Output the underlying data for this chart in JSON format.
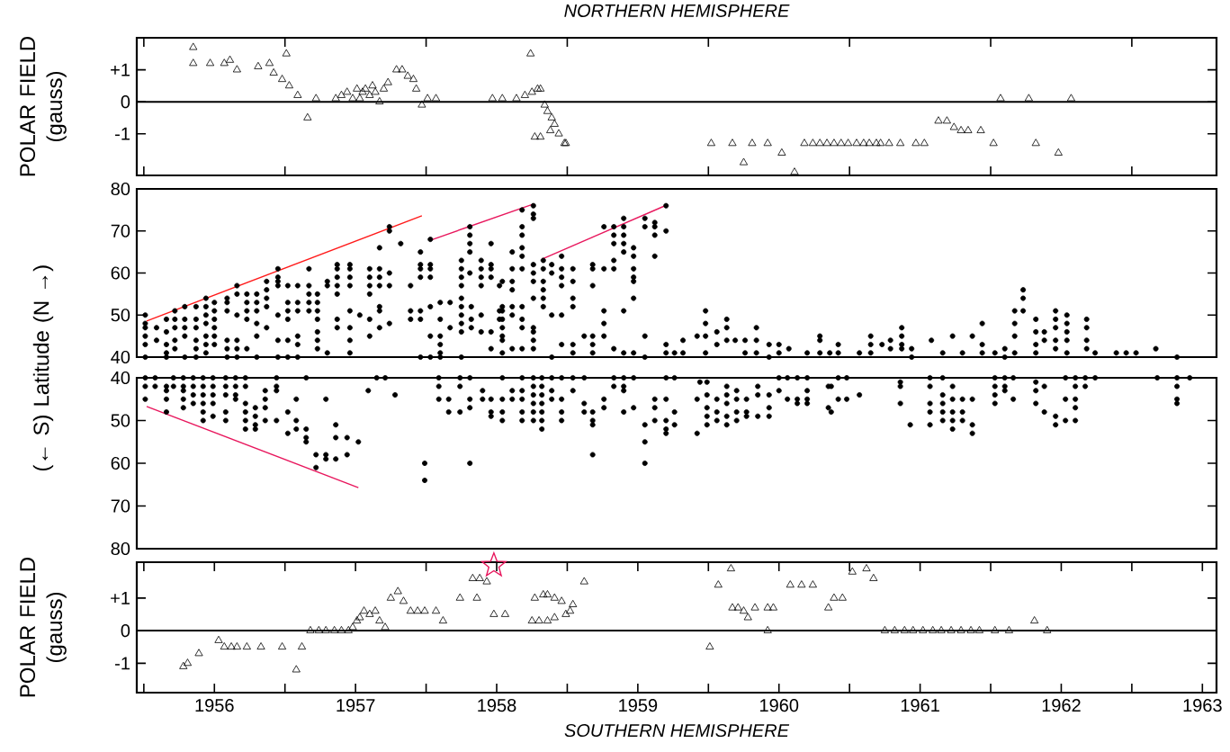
{
  "chart_data": [
    {
      "type": "scatter",
      "title": "NORTHERN HEMISPHERE",
      "ylabel": "POLAR FIELD (gauss)",
      "xlim": [
        1955.95,
        1963.6
      ],
      "ylim": [
        -2.3,
        2.0
      ],
      "tick_labels": "y",
      "xticks": [
        {
          "value": 1956,
          "label": null
        },
        {
          "value": 1957,
          "label": null
        },
        {
          "value": 1958,
          "label": null
        },
        {
          "value": 1959,
          "label": null
        },
        {
          "value": 1960,
          "label": null
        },
        {
          "value": 1961,
          "label": null
        },
        {
          "value": 1962,
          "label": null
        },
        {
          "value": 1963,
          "label": null
        }
      ],
      "yticks": [
        {
          "value": 1,
          "label": "+1"
        },
        0,
        -1
      ],
      "ref_lines": [
        {
          "axis": "y",
          "value": 0
        }
      ],
      "series": [
        {
          "color": "#000000",
          "marker": "triangle",
          "x": [
            1956.35,
            1956.35,
            1956.47,
            1956.57,
            1956.61,
            1956.66,
            1956.81,
            1956.89,
            1956.92,
            1956.98,
            1957.01,
            1957.03,
            1957.09,
            1957.16,
            1957.22,
            1957.36,
            1957.4,
            1957.44,
            1957.48,
            1957.51,
            1957.53,
            1957.55,
            1957.57,
            1957.6,
            1957.62,
            1957.64,
            1957.67,
            1957.7,
            1957.73,
            1957.79,
            1957.83,
            1957.87,
            1957.91,
            1957.93,
            1957.97,
            1958.01,
            1958.07,
            1958.47,
            1958.54,
            1958.64,
            1958.7,
            1958.74,
            1958.75,
            1958.79,
            1958.81,
            1958.84,
            1958.86,
            1958.89,
            1958.91,
            1958.77,
            1958.81,
            1958.88,
            1958.94,
            1958.98,
            1958.99,
            1960.02,
            1960.17,
            1960.25,
            1960.31,
            1960.42,
            1960.52,
            1960.61,
            1960.68,
            1960.74,
            1960.79,
            1960.84,
            1960.89,
            1960.94,
            1960.99,
            1961.05,
            1961.1,
            1961.14,
            1961.19,
            1961.22,
            1961.28,
            1961.36,
            1961.47,
            1961.53,
            1961.63,
            1961.69,
            1961.74,
            1961.79,
            1961.84,
            1961.93,
            1962.02,
            1962.07,
            1962.27,
            1962.32,
            1962.48,
            1962.57
          ],
          "values": [
            1.7,
            1.2,
            1.2,
            1.2,
            1.3,
            1.0,
            1.1,
            1.2,
            0.9,
            0.7,
            1.5,
            0.5,
            0.2,
            -0.5,
            0.1,
            0.1,
            0.2,
            0.3,
            0.1,
            0.4,
            0.1,
            0.3,
            0.4,
            0.2,
            0.5,
            0.3,
            0,
            0.4,
            0.6,
            1.0,
            1.0,
            0.8,
            0.7,
            0.4,
            -0.1,
            0.1,
            0.1,
            0.1,
            0.1,
            0.1,
            0.2,
            1.5,
            0.3,
            0.4,
            0.4,
            -0.1,
            -0.3,
            -0.5,
            -0.7,
            -1.1,
            -1.1,
            -0.9,
            -1.0,
            -1.3,
            -1.3,
            -1.3,
            -1.3,
            -1.9,
            -1.3,
            -1.3,
            -1.6,
            -2.2,
            -1.3,
            -1.3,
            -1.3,
            -1.3,
            -1.3,
            -1.3,
            -1.3,
            -1.3,
            -1.3,
            -1.3,
            -1.3,
            -1.3,
            -1.3,
            -1.3,
            -1.3,
            -1.3,
            -0.6,
            -0.6,
            -0.8,
            -0.9,
            -0.9,
            -0.9,
            -1.3,
            0.1,
            0.1,
            -1.3,
            -1.6,
            0.1
          ]
        }
      ]
    },
    {
      "type": "scatter",
      "ylabel": "(← S) Latitude (N →)",
      "xlim": [
        1955.95,
        1963.6
      ],
      "ylim": [
        40,
        80
      ],
      "tick_labels": "y",
      "yticks": [
        40,
        50,
        60,
        70,
        80
      ],
      "series": [
        {
          "color": "#000000",
          "marker": "circle",
          "x": [
            1956.01,
            1956.01,
            1956.01,
            1956.01,
            1956.01,
            1956.01,
            1956.09,
            1956.09,
            1956.16,
            1956.16,
            1956.16,
            1956.16,
            1956.16,
            1956.22,
            1956.22,
            1956.22,
            1956.22,
            1956.22,
            1956.29,
            1956.29,
            1956.29,
            1956.29,
            1956.29,
            1956.37,
            1956.37,
            1956.37,
            1956.37,
            1956.37,
            1956.37,
            1956.44,
            1956.44,
            1956.44,
            1956.44,
            1956.44,
            1956.44,
            1956.44,
            1956.5,
            1956.5,
            1956.5,
            1956.5,
            1956.5,
            1956.5,
            1956.59,
            1956.59,
            1956.59,
            1956.59,
            1956.59,
            1956.59,
            1956.66,
            1956.66,
            1956.66,
            1956.66,
            1956.66,
            1956.66,
            1956.73,
            1956.73,
            1956.73,
            1956.73,
            1956.73,
            1956.8,
            1956.8,
            1956.8,
            1956.8,
            1956.8,
            1956.8,
            1956.87,
            1956.87,
            1956.87,
            1956.87,
            1956.87,
            1956.95,
            1956.95,
            1956.95,
            1956.95,
            1956.95,
            1956.95,
            1956.95,
            1957.02,
            1957.02,
            1957.02,
            1957.02,
            1957.02,
            1957.02,
            1957.09,
            1957.09,
            1957.09,
            1957.09,
            1957.09,
            1957.09,
            1957.17,
            1957.17,
            1957.17,
            1957.17,
            1957.17,
            1957.23,
            1957.23,
            1957.23,
            1957.23,
            1957.23,
            1957.23,
            1957.23,
            1957.3,
            1957.3,
            1957.3,
            1957.37,
            1957.37,
            1957.37,
            1957.37,
            1957.37,
            1957.37,
            1957.37,
            1957.46,
            1957.46,
            1957.46,
            1957.46,
            1957.46,
            1957.46,
            1957.46,
            1957.46,
            1957.53,
            1957.6,
            1957.6,
            1957.6,
            1957.6,
            1957.6,
            1957.6,
            1957.67,
            1957.67,
            1957.67,
            1957.67,
            1957.67,
            1957.67,
            1957.67,
            1957.74,
            1957.74,
            1957.74,
            1957.74,
            1957.74,
            1957.82,
            1957.89,
            1957.89,
            1957.89,
            1957.96,
            1957.96,
            1957.96,
            1957.96,
            1957.96,
            1957.96,
            1957.96,
            1958.03,
            1958.03,
            1958.03,
            1958.03,
            1958.03,
            1958.03,
            1958.03,
            1958.1,
            1958.1,
            1958.1,
            1958.1,
            1958.1,
            1958.1,
            1958.17,
            1958.17,
            1958.25,
            1958.25,
            1958.25,
            1958.25,
            1958.25,
            1958.25,
            1958.25,
            1958.25,
            1958.25,
            1958.25,
            1958.31,
            1958.31,
            1958.31,
            1958.31,
            1958.31,
            1958.32,
            1958.32,
            1958.32,
            1958.39,
            1958.39,
            1958.39,
            1958.39,
            1958.39,
            1958.39,
            1958.46,
            1958.46,
            1958.46,
            1958.46,
            1958.46,
            1958.46,
            1958.52,
            1958.52,
            1958.52,
            1958.54,
            1958.54,
            1958.54,
            1958.54,
            1958.54,
            1958.54,
            1958.54,
            1958.54,
            1958.61,
            1958.61,
            1958.61,
            1958.61,
            1958.61,
            1958.61,
            1958.61,
            1958.68,
            1958.68,
            1958.68,
            1958.68,
            1958.68,
            1958.68,
            1958.68,
            1958.68,
            1958.68,
            1958.68,
            1958.76,
            1958.76,
            1958.76,
            1958.76,
            1958.76,
            1958.76,
            1958.76,
            1958.76,
            1958.76,
            1958.76,
            1958.76,
            1958.83,
            1958.83,
            1958.83,
            1958.83,
            1958.83,
            1958.83,
            1958.89,
            1958.89,
            1958.89,
            1958.89,
            1958.96,
            1958.96,
            1958.96,
            1958.96,
            1958.96,
            1958.96,
            1959.04,
            1959.04,
            1959.04,
            1959.04,
            1959.04,
            1959.04,
            1959.12,
            1959.18,
            1959.18,
            1959.18,
            1959.18,
            1959.18,
            1959.18,
            1959.26,
            1959.26,
            1959.26,
            1959.26,
            1959.26,
            1959.33,
            1959.33,
            1959.33,
            1959.33,
            1959.33,
            1959.33,
            1959.4,
            1959.4,
            1959.4,
            1959.4,
            1959.4,
            1959.4,
            1959.4,
            1959.47,
            1959.47,
            1959.47,
            1959.47,
            1959.47,
            1959.47,
            1959.47,
            1959.55,
            1959.55,
            1959.55,
            1959.55,
            1959.62,
            1959.62,
            1959.62,
            1959.62,
            1959.7,
            1959.7,
            1959.7,
            1959.7,
            1959.76,
            1959.82,
            1959.82,
            1959.92,
            1959.98,
            1959.98,
            1959.98,
            1959.98,
            1960.06,
            1960.06,
            1960.13,
            1960.13,
            1960.13,
            1960.19,
            1960.26,
            1960.26,
            1960.34,
            1960.34,
            1960.34,
            1960.43,
            1960.43,
            1960.5,
            1960.5,
            1960.57,
            1960.7,
            1960.79,
            1960.79,
            1960.79,
            1960.86,
            1960.92,
            1960.92,
            1961.07,
            1961.15,
            1961.15,
            1961.15,
            1961.23,
            1961.29,
            1961.29,
            1961.37,
            1961.37,
            1961.37,
            1961.37,
            1961.44,
            1961.44,
            1961.58,
            1961.66,
            1961.73,
            1961.8,
            1961.87,
            1961.94,
            1961.94,
            1961.94,
            1962.03,
            1962.1,
            1962.1,
            1962.17,
            1962.17,
            1962.17,
            1962.17,
            1962.23,
            1962.23,
            1962.23,
            1962.32,
            1962.32,
            1962.32,
            1962.32,
            1962.38,
            1962.38,
            1962.46,
            1962.46,
            1962.46,
            1962.46,
            1962.46,
            1962.54,
            1962.54,
            1962.54,
            1962.54,
            1962.54,
            1962.68,
            1962.68,
            1962.68,
            1962.68,
            1962.74,
            1962.89,
            1962.96,
            1963.03,
            1963.17,
            1963.32
          ],
          "values": [
            50,
            48,
            47,
            45,
            43,
            40,
            47,
            44,
            49,
            46,
            43,
            41,
            40,
            51,
            49,
            47,
            44,
            42,
            52,
            49,
            47,
            45,
            40,
            52,
            49,
            47,
            44,
            42,
            40,
            54,
            52,
            50,
            48,
            45,
            43,
            41,
            53,
            51,
            49,
            47,
            45,
            43,
            54,
            53,
            51,
            44,
            42,
            40,
            57,
            55,
            50,
            44,
            42,
            40,
            55,
            53,
            51,
            49,
            42,
            55,
            53,
            51,
            48,
            45,
            40,
            58,
            56,
            54,
            52,
            47,
            61,
            59,
            58,
            57,
            50,
            44,
            40,
            57,
            53,
            51,
            49,
            44,
            40,
            57,
            53,
            51,
            45,
            43,
            40,
            61,
            57,
            55,
            53,
            51,
            55,
            53,
            51,
            49,
            46,
            44,
            42,
            58,
            57,
            41,
            62,
            61,
            59,
            57,
            55,
            49,
            47,
            62,
            61,
            59,
            57,
            51,
            47,
            44,
            41,
            50,
            61,
            59,
            57,
            55,
            49,
            45,
            66,
            61,
            59,
            57,
            52,
            51,
            47,
            71,
            70,
            60,
            57,
            48,
            67,
            57,
            51,
            49,
            65,
            62,
            61,
            59,
            51,
            49,
            40,
            68,
            62,
            61,
            59,
            52,
            45,
            40,
            53,
            49,
            45,
            43,
            41,
            40,
            53,
            47,
            63,
            61,
            59,
            57,
            54,
            52,
            50,
            48,
            46,
            40,
            71,
            69,
            67,
            65,
            60,
            52,
            49,
            47,
            63,
            61,
            59,
            57,
            50,
            46,
            67,
            62,
            61,
            59,
            46,
            42,
            57,
            51,
            49,
            58,
            52,
            51,
            49,
            47,
            45,
            44,
            41,
            65,
            61,
            58,
            56,
            52,
            50,
            42,
            75,
            71,
            69,
            66,
            64,
            61,
            52,
            49,
            47,
            42,
            76,
            74,
            73,
            62,
            60,
            58,
            54,
            47,
            46,
            44,
            42,
            63,
            61,
            58,
            56,
            54,
            52,
            62,
            60,
            50,
            40,
            64,
            61,
            59,
            57,
            50,
            43,
            61,
            58,
            54,
            52,
            43,
            41,
            45,
            62,
            61,
            57,
            45,
            43,
            41,
            71,
            61,
            51,
            48,
            45,
            71,
            69,
            67,
            63,
            61,
            42,
            73,
            71,
            69,
            67,
            65,
            51,
            41,
            66,
            64,
            61,
            59,
            58,
            54,
            41,
            73,
            71,
            45,
            40,
            72,
            71,
            69,
            64,
            76,
            70,
            43,
            41,
            41,
            44,
            41,
            45,
            51,
            48,
            45,
            41,
            46,
            43,
            49,
            47,
            44,
            44,
            44,
            41,
            47,
            44,
            41,
            43,
            40,
            43,
            41,
            42,
            41,
            45,
            44,
            41,
            41,
            43,
            41,
            41,
            45,
            43,
            41,
            43,
            44,
            42,
            47,
            45,
            43,
            42,
            42,
            40,
            44,
            41,
            45,
            41,
            45,
            48,
            43,
            41,
            41,
            42,
            40,
            51,
            48,
            45,
            41,
            56,
            54,
            51,
            49,
            46,
            43,
            41,
            46,
            44,
            51,
            49,
            47,
            44,
            42,
            50,
            48,
            46,
            44,
            41,
            49,
            47,
            44,
            42,
            41,
            41,
            41,
            41,
            42,
            40
          ]
        },
        {
          "type": "line",
          "color": "#ff1a1a",
          "x": [
            1956.02,
            1957.97
          ],
          "values": [
            48.6,
            73.6
          ]
        },
        {
          "type": "line",
          "color": "#e8175d",
          "x": [
            1958.03,
            1958.76
          ],
          "values": [
            67.8,
            76.4
          ]
        },
        {
          "type": "line",
          "color": "#e8175d",
          "x": [
            1958.82,
            1959.7
          ],
          "values": [
            63.3,
            76.1
          ]
        }
      ]
    },
    {
      "type": "scatter",
      "xlim": [
        1955.95,
        1963.6
      ],
      "ylim": [
        80,
        40
      ],
      "tick_labels": "y",
      "yticks": [
        40,
        50,
        60,
        70,
        80
      ],
      "series": [
        {
          "color": "#000000",
          "marker": "circle",
          "x": [
            1956.01,
            1956.01,
            1956.01,
            1956.08,
            1956.08,
            1956.16,
            1956.16,
            1956.16,
            1956.16,
            1956.21,
            1956.21,
            1956.28,
            1956.28,
            1956.28,
            1956.28,
            1956.28,
            1956.35,
            1956.35,
            1956.35,
            1956.35,
            1956.42,
            1956.42,
            1956.42,
            1956.42,
            1956.42,
            1956.42,
            1956.49,
            1956.49,
            1956.49,
            1956.49,
            1956.49,
            1956.58,
            1956.58,
            1956.58,
            1956.58,
            1956.58,
            1956.65,
            1956.65,
            1956.65,
            1956.65,
            1956.72,
            1956.72,
            1956.72,
            1956.72,
            1956.72,
            1956.72,
            1956.79,
            1956.79,
            1956.79,
            1956.79,
            1956.86,
            1956.86,
            1956.86,
            1956.86,
            1956.94,
            1956.94,
            1956.94,
            1956.94,
            1957.02,
            1957.02,
            1957.08,
            1957.08,
            1957.08,
            1957.15,
            1957.15,
            1957.15,
            1957.15,
            1957.22,
            1957.22,
            1957.29,
            1957.29,
            1957.29,
            1957.36,
            1957.36,
            1957.36,
            1957.44,
            1957.44,
            1957.52,
            1957.59,
            1957.65,
            1957.71,
            1957.78,
            1957.99,
            1957.99,
            1958.09,
            1958.09,
            1958.09,
            1958.16,
            1958.16,
            1958.24,
            1958.24,
            1958.24,
            1958.31,
            1958.31,
            1958.31,
            1958.31,
            1958.4,
            1958.4,
            1958.46,
            1958.46,
            1958.46,
            1958.54,
            1958.54,
            1958.54,
            1958.54,
            1958.61,
            1958.61,
            1958.68,
            1958.68,
            1958.68,
            1958.68,
            1958.68,
            1958.76,
            1958.76,
            1958.76,
            1958.76,
            1958.76,
            1958.76,
            1958.82,
            1958.82,
            1958.82,
            1958.82,
            1958.82,
            1958.82,
            1958.82,
            1958.89,
            1958.89,
            1958.89,
            1958.96,
            1958.96,
            1958.96,
            1958.96,
            1959.04,
            1959.04,
            1959.12,
            1959.12,
            1959.12,
            1959.18,
            1959.18,
            1959.18,
            1959.18,
            1959.26,
            1959.26,
            1959.33,
            1959.33,
            1959.4,
            1959.4,
            1959.4,
            1959.4,
            1959.47,
            1959.47,
            1959.55,
            1959.55,
            1959.55,
            1959.62,
            1959.62,
            1959.62,
            1959.7,
            1959.7,
            1959.7,
            1959.7,
            1959.7,
            1959.76,
            1959.76,
            1959.76,
            1959.92,
            1959.92,
            1959.94,
            1959.99,
            1959.99,
            1959.99,
            1959.99,
            1959.99,
            1960.06,
            1960.06,
            1960.06,
            1960.13,
            1960.13,
            1960.13,
            1960.13,
            1960.13,
            1960.2,
            1960.2,
            1960.2,
            1960.2,
            1960.27,
            1960.27,
            1960.27,
            1960.35,
            1960.35,
            1960.35,
            1960.43,
            1960.43,
            1960.43,
            1960.5,
            1960.5,
            1960.56,
            1960.56,
            1960.63,
            1960.63,
            1960.63,
            1960.7,
            1960.7,
            1960.7,
            1960.7,
            1960.85,
            1960.85,
            1960.87,
            1960.87,
            1960.92,
            1960.92,
            1960.98,
            1960.98,
            1961.07,
            1961.36,
            1961.36,
            1961.36,
            1961.43,
            1961.57,
            1961.57,
            1961.57,
            1961.57,
            1961.57,
            1961.66,
            1961.66,
            1961.66,
            1961.66,
            1961.66,
            1961.73,
            1961.73,
            1961.73,
            1961.73,
            1961.73,
            1961.8,
            1961.8,
            1961.8,
            1961.87,
            1961.87,
            1961.87,
            1962.03,
            1962.03,
            1962.03,
            1962.03,
            1962.1,
            1962.1,
            1962.1,
            1962.16,
            1962.16,
            1962.32,
            1962.32,
            1962.32,
            1962.38,
            1962.38,
            1962.46,
            1962.46,
            1962.53,
            1962.53,
            1962.53,
            1962.6,
            1962.6,
            1962.6,
            1962.6,
            1962.6,
            1962.67,
            1962.67,
            1962.74,
            1963.18,
            1963.32,
            1963.32,
            1963.32,
            1963.32,
            1963.41
          ],
          "values": [
            40,
            42,
            45,
            40,
            42,
            42,
            43,
            45,
            48,
            40,
            42,
            40,
            42,
            43,
            45,
            47,
            40,
            42,
            44,
            46,
            40,
            42,
            44,
            46,
            48,
            50,
            40,
            42,
            44,
            46,
            49,
            40,
            42,
            44,
            48,
            50,
            40,
            42,
            44,
            45,
            40,
            42,
            46,
            48,
            50,
            52,
            47,
            49,
            51,
            52,
            43,
            45,
            47,
            50,
            40,
            42,
            43,
            50,
            48,
            53,
            45,
            50,
            52,
            40,
            52,
            54,
            55,
            58,
            61,
            45,
            58,
            59,
            51,
            54,
            59,
            54,
            58,
            55,
            43,
            40,
            40,
            44,
            60,
            64,
            40,
            42,
            45,
            45,
            48,
            40,
            42,
            48,
            40,
            45,
            47,
            60,
            43,
            45,
            45,
            48,
            49,
            40,
            45,
            48,
            50,
            43,
            45,
            40,
            43,
            45,
            48,
            50,
            40,
            42,
            44,
            46,
            48,
            50,
            40,
            42,
            44,
            46,
            48,
            50,
            52,
            40,
            43,
            45,
            40,
            45,
            48,
            50,
            40,
            43,
            40,
            46,
            48,
            48,
            50,
            51,
            58,
            45,
            47,
            40,
            42,
            40,
            42,
            43,
            48,
            40,
            47,
            51,
            55,
            60,
            45,
            47,
            50,
            40,
            45,
            50,
            52,
            53,
            40,
            48,
            51,
            45,
            53,
            41,
            41,
            44,
            47,
            49,
            51,
            45,
            48,
            50,
            42,
            44,
            46,
            49,
            51,
            43,
            45,
            48,
            50,
            45,
            48,
            49,
            42,
            44,
            49,
            44,
            47,
            49,
            40,
            43,
            40,
            45,
            40,
            45,
            46,
            40,
            43,
            45,
            46,
            42,
            47,
            42,
            48,
            40,
            45,
            40,
            45,
            44,
            41,
            42,
            46,
            51,
            40,
            42,
            46,
            48,
            51,
            40,
            44,
            46,
            48,
            50,
            42,
            45,
            48,
            50,
            52,
            45,
            48,
            50,
            45,
            51,
            53,
            40,
            42,
            44,
            46,
            40,
            42,
            43,
            40,
            45,
            41,
            43,
            46,
            42,
            48,
            49,
            51,
            40,
            45,
            50,
            40,
            42,
            45,
            47,
            50,
            40,
            42,
            40,
            40,
            40,
            42,
            45,
            46,
            40
          ]
        },
        {
          "type": "line",
          "color": "#e8175d",
          "x": [
            1956.02,
            1957.52
          ],
          "values": [
            46.7,
            65.7
          ]
        }
      ]
    },
    {
      "type": "scatter",
      "ylabel": "POLAR FIELD (gauss)",
      "xlabel": "SOUTHERN HEMISPHERE",
      "xlim": [
        1955.95,
        1963.6
      ],
      "ylim": [
        -1.9,
        2.1
      ],
      "xticks": [
        {
          "value": 1956,
          "label": null
        },
        {
          "value": 1956.5,
          "label": "1956"
        },
        {
          "value": 1957,
          "label": null
        },
        {
          "value": 1957.5,
          "label": "1957"
        },
        {
          "value": 1958,
          "label": null
        },
        {
          "value": 1958.5,
          "label": "1958"
        },
        {
          "value": 1959,
          "label": null
        },
        {
          "value": 1959.5,
          "label": "1959"
        },
        {
          "value": 1960,
          "label": null
        },
        {
          "value": 1960.5,
          "label": "1960"
        },
        {
          "value": 1961,
          "label": null
        },
        {
          "value": 1961.5,
          "label": "1961"
        },
        {
          "value": 1962,
          "label": null
        },
        {
          "value": 1962.5,
          "label": "1962"
        },
        {
          "value": 1963,
          "label": null
        },
        {
          "value": 1963.5,
          "label": "1963"
        }
      ],
      "yticks": [
        {
          "value": 1,
          "label": "+1"
        },
        0,
        -1
      ],
      "ref_lines": [
        {
          "axis": "y",
          "value": 0
        }
      ],
      "series": [
        {
          "color": "#000000",
          "marker": "triangle",
          "x": [
            1956.28,
            1956.31,
            1956.39,
            1956.53,
            1956.57,
            1956.62,
            1956.66,
            1956.73,
            1956.83,
            1956.98,
            1957.08,
            1957.12,
            1957.18,
            1957.24,
            1957.29,
            1957.35,
            1957.4,
            1957.45,
            1957.48,
            1957.51,
            1957.53,
            1957.56,
            1957.6,
            1957.64,
            1957.67,
            1957.71,
            1957.75,
            1957.8,
            1957.84,
            1957.89,
            1957.94,
            1957.99,
            1958.07,
            1958.12,
            1958.24,
            1958.33,
            1958.36,
            1958.38,
            1958.43,
            1958.48,
            1958.56,
            1958.75,
            1958.77,
            1958.8,
            1958.83,
            1958.86,
            1958.86,
            1958.91,
            1958.91,
            1958.96,
            1958.99,
            1959.02,
            1959.04,
            1959.12,
            1960.01,
            1960.07,
            1960.16,
            1960.17,
            1960.21,
            1960.25,
            1960.28,
            1960.33,
            1960.42,
            1960.42,
            1960.46,
            1960.58,
            1960.66,
            1960.74,
            1960.85,
            1960.89,
            1960.95,
            1961.02,
            1961.12,
            1961.17,
            1961.25,
            1961.32,
            1961.39,
            1961.45,
            1961.52,
            1961.59,
            1961.65,
            1961.72,
            1961.79,
            1961.86,
            1961.92,
            1962.03,
            1962.13,
            1962.31,
            1962.4
          ],
          "values": [
            -1.1,
            -1.0,
            -0.7,
            -0.3,
            -0.5,
            -0.5,
            -0.5,
            -0.5,
            -0.5,
            -0.5,
            -1.2,
            -0.5,
            0,
            0,
            0,
            0,
            0,
            0,
            0.1,
            0.3,
            0.4,
            0.6,
            0.5,
            0.6,
            0.3,
            0.1,
            1.0,
            1.2,
            0.9,
            0.6,
            0.6,
            0.6,
            0.6,
            0.3,
            1.0,
            1.6,
            1.0,
            1.6,
            1.5,
            0.5,
            0.5,
            0.3,
            1.0,
            0.3,
            1.1,
            1.1,
            0.3,
            1.0,
            0.4,
            0.9,
            0.5,
            0.6,
            0.8,
            1.5,
            -0.5,
            1.4,
            1.9,
            0.7,
            0.7,
            0.6,
            0.4,
            0.7,
            0.7,
            0,
            0.7,
            1.4,
            1.4,
            1.4,
            0.7,
            1.0,
            1.0,
            1.8,
            1.9,
            1.6,
            0,
            0,
            0,
            0,
            0,
            0,
            0,
            0,
            0,
            0,
            0,
            0,
            0,
            0.3,
            0
          ]
        },
        {
          "color": "#e8175d",
          "marker": "star",
          "x": [
            1958.48
          ],
          "values": [
            2.0
          ]
        }
      ]
    }
  ]
}
